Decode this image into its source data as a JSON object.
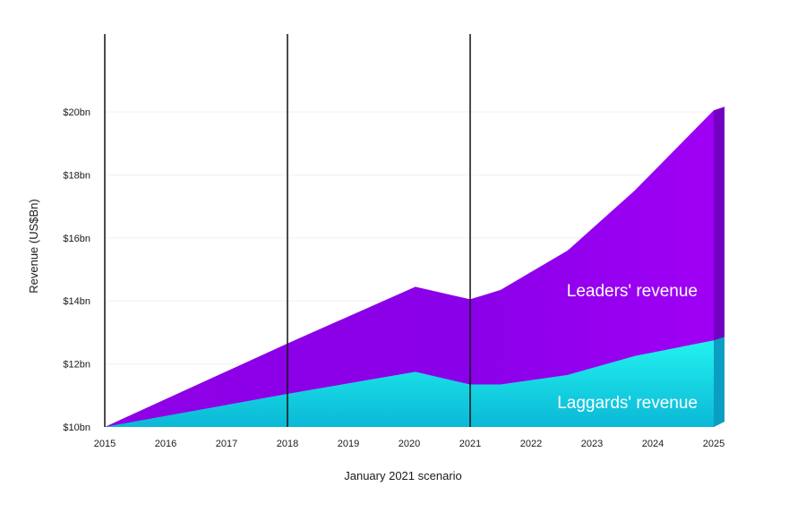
{
  "chart_data": {
    "type": "area",
    "title": "",
    "xlabel": "January 2021 scenario",
    "ylabel": "Revenue (US$Bn)",
    "x": [
      2015,
      2016,
      2017,
      2018,
      2019,
      2020,
      2021,
      2022,
      2023,
      2024,
      2025
    ],
    "x_tick_labels": [
      "2015",
      "2016",
      "2017",
      "2018",
      "2019",
      "2020",
      "2021",
      "2022",
      "2023",
      "2024",
      "2025"
    ],
    "y_ticks": [
      10,
      12,
      14,
      16,
      18,
      20
    ],
    "y_tick_labels": [
      "$10bn",
      "$12bn",
      "$14bn",
      "$16bn",
      "$18bn",
      "$20bn"
    ],
    "ylim": [
      10,
      20
    ],
    "grid": "horizontal",
    "vertical_markers": [
      2015,
      2018,
      2021
    ],
    "series": [
      {
        "label": "Leaders' revenue",
        "color": "#8f00e6",
        "points": [
          [
            2015,
            10.0
          ],
          [
            2018,
            12.65
          ],
          [
            2020.1,
            14.45
          ],
          [
            2021,
            14.05
          ],
          [
            2021.5,
            14.35
          ],
          [
            2022.6,
            15.6
          ],
          [
            2023.7,
            17.5
          ],
          [
            2025,
            20.05
          ]
        ]
      },
      {
        "label": "Laggards' revenue",
        "color": "#16d9e6",
        "points": [
          [
            2015,
            10.0
          ],
          [
            2018,
            11.05
          ],
          [
            2020.1,
            11.75
          ],
          [
            2021,
            11.35
          ],
          [
            2021.5,
            11.35
          ],
          [
            2022.6,
            11.65
          ],
          [
            2023.7,
            12.25
          ],
          [
            2025,
            12.75
          ]
        ]
      }
    ]
  }
}
